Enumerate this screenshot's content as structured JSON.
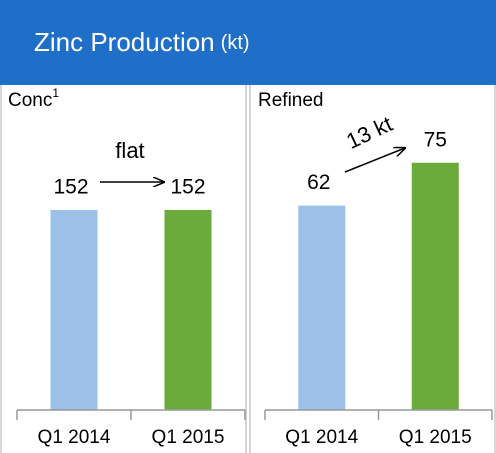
{
  "header": {
    "title": "Zinc Production",
    "unit": "(kt)"
  },
  "chart_data": [
    {
      "type": "bar",
      "title": "Conc",
      "title_superscript": "1",
      "annotation": "flat",
      "categories": [
        "Q1 2014",
        "Q1 2015"
      ],
      "values": [
        152,
        152
      ],
      "colors": [
        "#9cc0e8",
        "#6aab3c"
      ],
      "ylim": [
        0,
        228
      ]
    },
    {
      "type": "bar",
      "title": "Refined",
      "annotation": "13 kt",
      "categories": [
        "Q1 2014",
        "Q1 2015"
      ],
      "values": [
        62,
        75
      ],
      "colors": [
        "#9cc0e8",
        "#6aab3c"
      ],
      "ylim": [
        0,
        91
      ]
    }
  ]
}
